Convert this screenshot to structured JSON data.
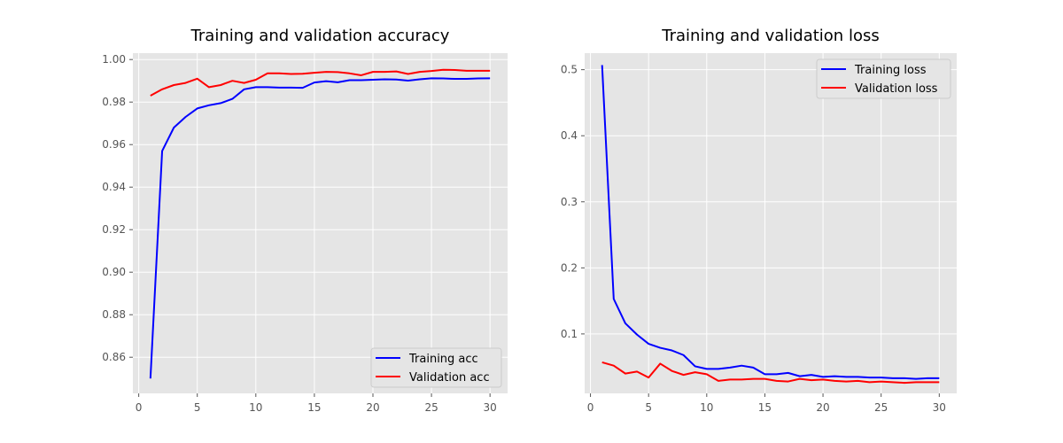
{
  "chart_data": [
    {
      "type": "line",
      "title": "Training and validation accuracy",
      "xlabel": "",
      "ylabel": "",
      "xlim": [
        -0.5,
        31.5
      ],
      "ylim": [
        0.843,
        1.003
      ],
      "xticks": [
        0,
        5,
        10,
        15,
        20,
        25,
        30
      ],
      "xtick_labels": [
        "0",
        "5",
        "10",
        "15",
        "20",
        "25",
        "30"
      ],
      "yticks": [
        0.86,
        0.88,
        0.9,
        0.92,
        0.94,
        0.96,
        0.98,
        1.0
      ],
      "ytick_labels": [
        "0.86",
        "0.88",
        "0.90",
        "0.92",
        "0.94",
        "0.96",
        "0.98",
        "1.00"
      ],
      "grid": true,
      "legend_position": "lower-right",
      "x": [
        1,
        2,
        3,
        4,
        5,
        6,
        7,
        8,
        9,
        10,
        11,
        12,
        13,
        14,
        15,
        16,
        17,
        18,
        19,
        20,
        21,
        22,
        23,
        24,
        25,
        26,
        27,
        28,
        29,
        30
      ],
      "series": [
        {
          "name": "Training acc",
          "color": "#0000ff",
          "values": [
            0.85,
            0.957,
            0.968,
            0.973,
            0.977,
            0.9785,
            0.9795,
            0.9815,
            0.986,
            0.987,
            0.987,
            0.9868,
            0.9868,
            0.9867,
            0.9892,
            0.9898,
            0.9893,
            0.9903,
            0.9903,
            0.9905,
            0.9907,
            0.9906,
            0.9901,
            0.9907,
            0.9912,
            0.9911,
            0.9909,
            0.9909,
            0.9911,
            0.9912
          ]
        },
        {
          "name": "Validation acc",
          "color": "#ff0000",
          "values": [
            0.983,
            0.986,
            0.988,
            0.989,
            0.991,
            0.987,
            0.988,
            0.99,
            0.989,
            0.9905,
            0.9935,
            0.9935,
            0.9932,
            0.9933,
            0.9938,
            0.9942,
            0.9941,
            0.9935,
            0.9926,
            0.9942,
            0.9942,
            0.9944,
            0.9932,
            0.9942,
            0.9946,
            0.9952,
            0.9951,
            0.9947,
            0.9947,
            0.9947
          ]
        }
      ]
    },
    {
      "type": "line",
      "title": "Training and validation loss",
      "xlabel": "",
      "ylabel": "",
      "xlim": [
        -0.5,
        31.5
      ],
      "ylim": [
        0.01,
        0.525
      ],
      "xticks": [
        0,
        5,
        10,
        15,
        20,
        25,
        30
      ],
      "xtick_labels": [
        "0",
        "5",
        "10",
        "15",
        "20",
        "25",
        "30"
      ],
      "yticks": [
        0.1,
        0.2,
        0.3,
        0.4,
        0.5
      ],
      "ytick_labels": [
        "0.1",
        "0.2",
        "0.3",
        "0.4",
        "0.5"
      ],
      "grid": true,
      "legend_position": "upper-right",
      "x": [
        1,
        2,
        3,
        4,
        5,
        6,
        7,
        8,
        9,
        10,
        11,
        12,
        13,
        14,
        15,
        16,
        17,
        18,
        19,
        20,
        21,
        22,
        23,
        24,
        25,
        26,
        27,
        28,
        29,
        30
      ],
      "series": [
        {
          "name": "Training loss",
          "color": "#0000ff",
          "values": [
            0.507,
            0.153,
            0.116,
            0.099,
            0.085,
            0.079,
            0.075,
            0.068,
            0.051,
            0.047,
            0.047,
            0.049,
            0.052,
            0.049,
            0.039,
            0.039,
            0.041,
            0.036,
            0.038,
            0.035,
            0.036,
            0.035,
            0.035,
            0.034,
            0.034,
            0.033,
            0.033,
            0.032,
            0.033,
            0.033
          ]
        },
        {
          "name": "Validation loss",
          "color": "#ff0000",
          "values": [
            0.057,
            0.052,
            0.04,
            0.043,
            0.034,
            0.055,
            0.044,
            0.038,
            0.042,
            0.039,
            0.029,
            0.031,
            0.031,
            0.032,
            0.032,
            0.029,
            0.028,
            0.032,
            0.03,
            0.031,
            0.029,
            0.028,
            0.029,
            0.027,
            0.028,
            0.027,
            0.026,
            0.027,
            0.027,
            0.027
          ]
        }
      ]
    }
  ]
}
